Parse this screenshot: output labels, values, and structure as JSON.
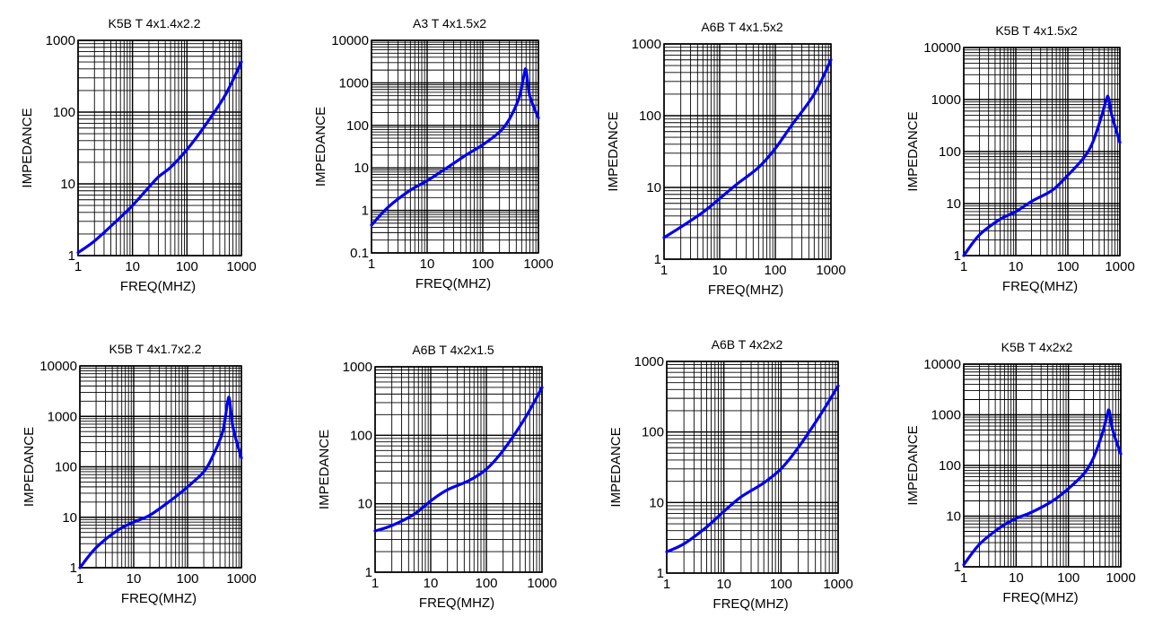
{
  "colors": {
    "curve": "#0000ee",
    "grid": "#000000",
    "background": "#ffffff"
  },
  "chart_data": [
    {
      "type": "line",
      "title": "K5B T 4x1.4x2.2",
      "xlabel": "FREQ(MHZ)",
      "ylabel": "IMPEDANCE",
      "xscale": "log",
      "yscale": "log",
      "xlim": [
        1,
        1000
      ],
      "ylim": [
        1,
        1000
      ],
      "xticks": [
        "1",
        "10",
        "100",
        "1000"
      ],
      "yticks": [
        "1",
        "10",
        "100",
        "1000"
      ],
      "grid": true,
      "series": [
        {
          "x": [
            1,
            2,
            5,
            10,
            20,
            30,
            50,
            100,
            200,
            500,
            1000
          ],
          "y": [
            1.1,
            1.6,
            3,
            5,
            9,
            12.5,
            17,
            30,
            60,
            170,
            500
          ]
        }
      ]
    },
    {
      "type": "line",
      "title": "A3 T 4x1.5x2",
      "xlabel": "FREQ(MHZ)",
      "ylabel": "IMPEDANCE",
      "xscale": "log",
      "yscale": "log",
      "xlim": [
        1,
        1000
      ],
      "ylim": [
        0.1,
        10000
      ],
      "xticks": [
        "1",
        "10",
        "100",
        "1000"
      ],
      "yticks": [
        "0.1",
        "1",
        "10",
        "100",
        "1000",
        "10000"
      ],
      "grid": true,
      "series": [
        {
          "x": [
            1,
            2,
            5,
            10,
            20,
            50,
            100,
            200,
            300,
            450,
            550,
            600,
            700,
            1000
          ],
          "y": [
            0.45,
            1.2,
            3,
            5,
            9,
            20,
            35,
            70,
            140,
            450,
            1500,
            2000,
            500,
            150
          ]
        }
      ]
    },
    {
      "type": "line",
      "title": "A6B T 4x1.5x2",
      "xlabel": "FREQ(MHZ)",
      "ylabel": "IMPEDANCE",
      "xscale": "log",
      "yscale": "log",
      "xlim": [
        1,
        1000
      ],
      "ylim": [
        1,
        1000
      ],
      "xticks": [
        "1",
        "10",
        "100",
        "1000"
      ],
      "yticks": [
        "1",
        "10",
        "100",
        "1000"
      ],
      "grid": true,
      "series": [
        {
          "x": [
            1,
            2,
            5,
            10,
            20,
            50,
            100,
            200,
            500,
            1000
          ],
          "y": [
            2,
            2.8,
            4.5,
            7,
            11,
            19,
            35,
            75,
            200,
            600
          ]
        }
      ]
    },
    {
      "type": "line",
      "title": "K5B T 4x1.5x2",
      "xlabel": "FREQ(MHZ)",
      "ylabel": "IMPEDANCE",
      "xscale": "log",
      "yscale": "log",
      "xlim": [
        1,
        1000
      ],
      "ylim": [
        1,
        10000
      ],
      "xticks": [
        "1",
        "10",
        "100",
        "1000"
      ],
      "yticks": [
        "1",
        "10",
        "100",
        "1000",
        "10000"
      ],
      "grid": true,
      "series": [
        {
          "x": [
            1,
            2,
            5,
            10,
            20,
            50,
            100,
            200,
            300,
            450,
            550,
            600,
            700,
            1000
          ],
          "y": [
            1,
            2.5,
            5,
            7,
            11,
            18,
            35,
            75,
            150,
            500,
            1000,
            1100,
            500,
            150
          ]
        }
      ]
    },
    {
      "type": "line",
      "title": "K5B T 4x1.7x2.2",
      "xlabel": "FREQ(MHZ)",
      "ylabel": "IMPEDANCE",
      "xscale": "log",
      "yscale": "log",
      "xlim": [
        1,
        1000
      ],
      "ylim": [
        1,
        10000
      ],
      "xticks": [
        "1",
        "10",
        "100",
        "1000"
      ],
      "yticks": [
        "1",
        "10",
        "100",
        "1000",
        "10000"
      ],
      "grid": true,
      "series": [
        {
          "x": [
            1,
            2,
            5,
            10,
            20,
            50,
            100,
            200,
            300,
            450,
            550,
            600,
            700,
            1000
          ],
          "y": [
            1,
            2.5,
            5.5,
            8,
            11,
            22,
            40,
            80,
            170,
            500,
            1800,
            2200,
            600,
            150
          ]
        }
      ]
    },
    {
      "type": "line",
      "title": "A6B T 4x2x1.5",
      "xlabel": "FREQ(MHZ)",
      "ylabel": "IMPEDANCE",
      "xscale": "log",
      "yscale": "log",
      "xlim": [
        1,
        1000
      ],
      "ylim": [
        1,
        1000
      ],
      "xticks": [
        "1",
        "10",
        "100",
        "1000"
      ],
      "yticks": [
        "1",
        "10",
        "100",
        "1000"
      ],
      "grid": true,
      "series": [
        {
          "x": [
            1,
            2,
            5,
            10,
            20,
            50,
            100,
            200,
            500,
            1000
          ],
          "y": [
            4,
            4.8,
            7,
            11,
            16,
            22,
            32,
            60,
            180,
            500
          ]
        }
      ]
    },
    {
      "type": "line",
      "title": "A6B T 4x2x2",
      "xlabel": "FREQ(MHZ)",
      "ylabel": "IMPEDANCE",
      "xscale": "log",
      "yscale": "log",
      "xlim": [
        1,
        1000
      ],
      "ylim": [
        1,
        1000
      ],
      "xticks": [
        "1",
        "10",
        "100",
        "1000"
      ],
      "yticks": [
        "1",
        "10",
        "100",
        "1000"
      ],
      "grid": true,
      "series": [
        {
          "x": [
            1,
            2,
            5,
            10,
            20,
            50,
            100,
            200,
            500,
            1000
          ],
          "y": [
            2,
            2.6,
            4.5,
            7.5,
            12,
            19,
            30,
            60,
            180,
            450
          ]
        }
      ]
    },
    {
      "type": "line",
      "title": "K5B T 4x2x2",
      "xlabel": "FREQ(MHZ)",
      "ylabel": "IMPEDANCE",
      "xscale": "log",
      "yscale": "log",
      "xlim": [
        1,
        1000
      ],
      "ylim": [
        1,
        10000
      ],
      "xticks": [
        "1",
        "10",
        "100",
        "1000"
      ],
      "yticks": [
        "1",
        "10",
        "100",
        "1000",
        "10000"
      ],
      "grid": true,
      "series": [
        {
          "x": [
            1,
            2,
            5,
            10,
            20,
            50,
            100,
            200,
            300,
            450,
            550,
            600,
            700,
            1000
          ],
          "y": [
            1.1,
            2.8,
            6,
            9,
            12,
            20,
            35,
            70,
            140,
            450,
            1000,
            1200,
            500,
            170
          ]
        }
      ]
    }
  ]
}
